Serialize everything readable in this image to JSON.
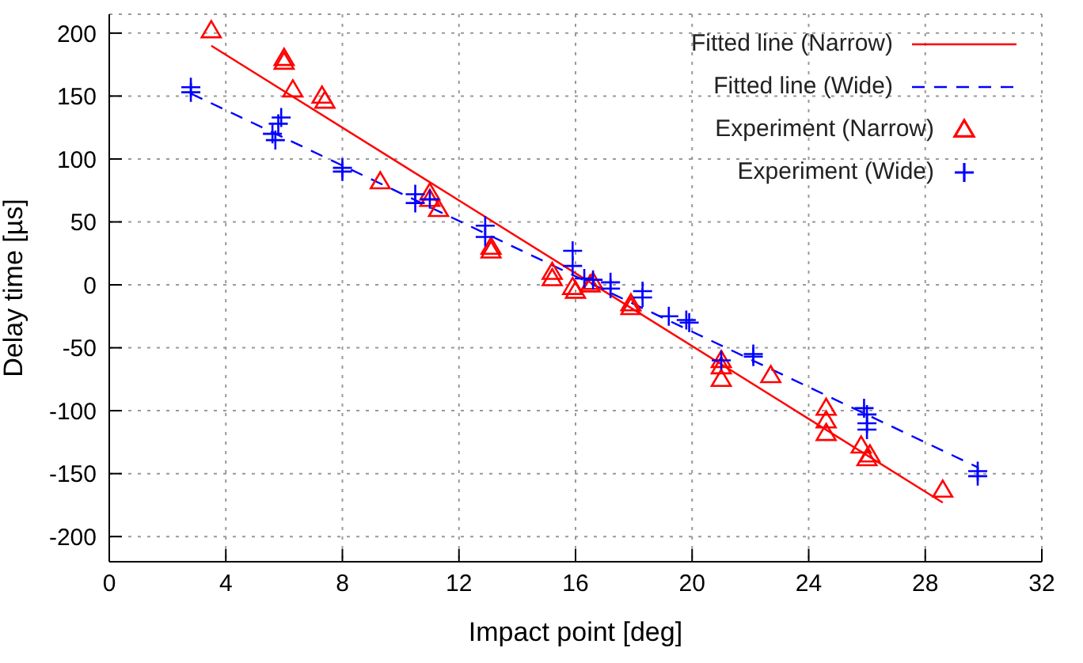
{
  "chart_data": {
    "type": "scatter",
    "xlabel": "Impact point [deg]",
    "ylabel": "Delay time [µs]",
    "xlim": [
      0,
      32
    ],
    "xticks": [
      0,
      4,
      8,
      12,
      16,
      20,
      24,
      28,
      32
    ],
    "ylim": [
      -220,
      215
    ],
    "yticks": [
      -200,
      -150,
      -100,
      -50,
      0,
      50,
      100,
      150,
      200
    ],
    "grid": true,
    "legend": "top right",
    "series": [
      {
        "name": "Fitted line (Narrow)",
        "type": "line",
        "color": "#ff0000",
        "line_style": "solid",
        "x": [
          3.5,
          28.6
        ],
        "values": [
          190,
          -173
        ]
      },
      {
        "name": "Fitted line (Wide)",
        "type": "line",
        "color": "#0000ff",
        "line_style": "dashed",
        "x": [
          2.8,
          29.8
        ],
        "values": [
          152,
          -145
        ]
      },
      {
        "name": "Experiment (Narrow)",
        "color": "#ff0000",
        "marker": "triangle",
        "x": [
          3.5,
          6,
          6,
          6.3,
          7.3,
          7.4,
          9.3,
          11,
          11,
          11.3,
          13.1,
          13.1,
          15.2,
          15.2,
          15.9,
          16,
          16.5,
          16.6,
          17.9,
          17.9,
          21,
          21,
          21,
          22.7,
          24.6,
          24.6,
          24.6,
          25.8,
          26.1,
          26,
          28.6
        ],
        "values": [
          202,
          180,
          177,
          155,
          150,
          146,
          82,
          73,
          68,
          60,
          30,
          27,
          10,
          5,
          -2,
          -5,
          0,
          2,
          -15,
          -18,
          -60,
          -65,
          -75,
          -72,
          -98,
          -108,
          -118,
          -128,
          -135,
          -138,
          -163
        ]
      },
      {
        "name": "Experiment (Wide)",
        "color": "#0000ff",
        "marker": "cross",
        "x": [
          2.8,
          2.8,
          5.6,
          5.7,
          5.8,
          5.9,
          8,
          8,
          10.5,
          10.5,
          11,
          12.9,
          12.9,
          15.9,
          15.9,
          16.3,
          16.6,
          17.2,
          17.2,
          18.3,
          18.3,
          19.2,
          19.8,
          19.9,
          21,
          22.1,
          22.1,
          25.9,
          26,
          26,
          26,
          29.8,
          29.8
        ],
        "values": [
          157,
          153,
          120,
          115,
          128,
          133,
          93,
          90,
          72,
          65,
          68,
          47,
          38,
          27,
          15,
          5,
          4,
          2,
          -3,
          -5,
          -10,
          -25,
          -28,
          -30,
          -60,
          -55,
          -57,
          -98,
          -103,
          -110,
          -115,
          -148,
          -152
        ]
      }
    ]
  }
}
